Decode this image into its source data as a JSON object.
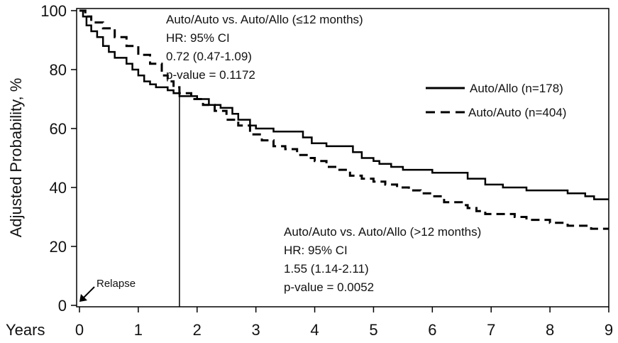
{
  "chart_data": {
    "type": "line",
    "xlabel": "Years",
    "ylabel": "Adjusted Probability, %",
    "xlim": [
      0,
      9
    ],
    "ylim": [
      0,
      100
    ],
    "x_ticks": [
      0,
      1,
      2,
      3,
      4,
      5,
      6,
      7,
      8,
      9
    ],
    "y_ticks": [
      0,
      20,
      40,
      60,
      80,
      100
    ],
    "grid": false,
    "legend_position": "right",
    "series": [
      {
        "name": "Auto/Allo  (n=178)",
        "style": "solid",
        "color": "#000000",
        "points": [
          [
            0,
            100
          ],
          [
            0.06,
            98
          ],
          [
            0.12,
            95
          ],
          [
            0.2,
            93
          ],
          [
            0.3,
            91
          ],
          [
            0.4,
            88
          ],
          [
            0.5,
            86
          ],
          [
            0.6,
            84
          ],
          [
            0.8,
            82
          ],
          [
            0.9,
            80
          ],
          [
            1.0,
            78
          ],
          [
            1.1,
            76
          ],
          [
            1.2,
            75
          ],
          [
            1.3,
            74
          ],
          [
            1.5,
            73
          ],
          [
            1.6,
            72
          ],
          [
            1.7,
            71
          ],
          [
            1.9,
            71
          ],
          [
            2.0,
            70
          ],
          [
            2.2,
            68
          ],
          [
            2.4,
            67
          ],
          [
            2.6,
            65
          ],
          [
            2.7,
            63
          ],
          [
            2.9,
            61
          ],
          [
            3.0,
            60
          ],
          [
            3.3,
            59
          ],
          [
            3.6,
            59
          ],
          [
            3.8,
            57
          ],
          [
            3.95,
            55
          ],
          [
            4.2,
            54
          ],
          [
            4.5,
            54
          ],
          [
            4.65,
            52
          ],
          [
            4.8,
            50
          ],
          [
            5.0,
            49
          ],
          [
            5.1,
            48
          ],
          [
            5.3,
            47
          ],
          [
            5.5,
            46
          ],
          [
            6.0,
            45
          ],
          [
            6.4,
            45
          ],
          [
            6.6,
            43
          ],
          [
            6.9,
            41
          ],
          [
            7.2,
            40
          ],
          [
            7.6,
            39
          ],
          [
            8.3,
            38
          ],
          [
            8.6,
            37
          ],
          [
            8.75,
            36
          ],
          [
            9.0,
            36
          ]
        ]
      },
      {
        "name": "Auto/Auto (n=404)",
        "style": "dashed",
        "color": "#000000",
        "points": [
          [
            0,
            100
          ],
          [
            0.1,
            98
          ],
          [
            0.2,
            96
          ],
          [
            0.4,
            94
          ],
          [
            0.6,
            91
          ],
          [
            0.8,
            88
          ],
          [
            1.0,
            85
          ],
          [
            1.2,
            82
          ],
          [
            1.4,
            78
          ],
          [
            1.5,
            76
          ],
          [
            1.6,
            74
          ],
          [
            1.7,
            72
          ],
          [
            1.9,
            70
          ],
          [
            2.1,
            68
          ],
          [
            2.3,
            66
          ],
          [
            2.5,
            63
          ],
          [
            2.7,
            61
          ],
          [
            2.9,
            58
          ],
          [
            3.1,
            56
          ],
          [
            3.3,
            54
          ],
          [
            3.5,
            53
          ],
          [
            3.7,
            51
          ],
          [
            3.9,
            50
          ],
          [
            4.0,
            49
          ],
          [
            4.2,
            47
          ],
          [
            4.4,
            46
          ],
          [
            4.6,
            44
          ],
          [
            4.8,
            43
          ],
          [
            5.0,
            42
          ],
          [
            5.2,
            41
          ],
          [
            5.4,
            40
          ],
          [
            5.6,
            39
          ],
          [
            5.8,
            38
          ],
          [
            6.0,
            37
          ],
          [
            6.2,
            35
          ],
          [
            6.5,
            34
          ],
          [
            6.6,
            33
          ],
          [
            6.75,
            32
          ],
          [
            6.9,
            31
          ],
          [
            7.2,
            31
          ],
          [
            7.4,
            30
          ],
          [
            7.6,
            29
          ],
          [
            8.0,
            28
          ],
          [
            8.3,
            27
          ],
          [
            8.6,
            27
          ],
          [
            8.7,
            26
          ],
          [
            9.0,
            26
          ]
        ]
      }
    ],
    "cut_year": 1.7,
    "annotations": {
      "early": {
        "line1": "Auto/Auto vs. Auto/Allo (≤12 months)",
        "line2": "HR: 95% CI",
        "line3": "0.72 (0.47-1.09)",
        "line4": "p-value = 0.1172"
      },
      "late": {
        "line1": "Auto/Auto vs. Auto/Allo (>12 months)",
        "line2": "HR: 95% CI",
        "line3": "1.55 (1.14-2.11)",
        "line4": "p-value = 0.0052"
      },
      "relapse": "Relapse"
    }
  }
}
